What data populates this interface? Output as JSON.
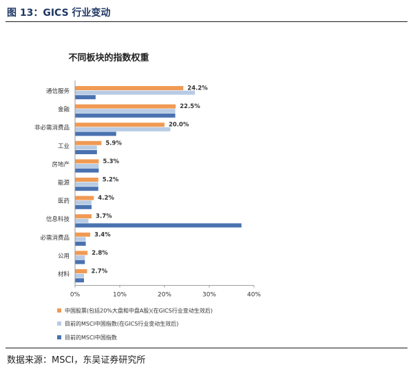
{
  "figure_title": "图 13：GICS 行业变动",
  "source": "数据来源：MSCI，东吴证券研究所",
  "colors": {
    "series1": "#f09a54",
    "series2": "#b8cbe4",
    "series3": "#4a72b0",
    "label": "#333333",
    "axis": "#999999",
    "title_color": "#1f3864"
  },
  "chart_data": {
    "type": "bar",
    "orientation": "horizontal",
    "title": "不同板块的指数权重",
    "categories": [
      "通信服务",
      "金融",
      "非必需消费品",
      "工业",
      "房地产",
      "能源",
      "医药",
      "信息科技",
      "必需消费品",
      "公用",
      "材料"
    ],
    "series": [
      {
        "name": "中国股票(包括20%大盘和中盘A股)(在GICS行业变动生效后)",
        "values": [
          24.2,
          22.5,
          20.0,
          5.9,
          5.3,
          5.2,
          4.2,
          3.7,
          3.4,
          2.8,
          2.7
        ]
      },
      {
        "name": "目前的MSCI中国指数(在GICS行业变动生效后)",
        "values": [
          26.8,
          22.4,
          21.3,
          4.9,
          5.3,
          5.2,
          3.7,
          3.0,
          2.4,
          2.2,
          2.0
        ]
      },
      {
        "name": "目前的MSCI中国指数",
        "values": [
          4.6,
          22.4,
          9.2,
          4.9,
          5.3,
          5.2,
          3.7,
          37.2,
          2.4,
          2.2,
          2.0
        ]
      }
    ],
    "data_labels": [
      "24.2%",
      "22.5%",
      "20.0%",
      "5.9%",
      "5.3%",
      "5.2%",
      "4.2%",
      "3.7%",
      "3.4%",
      "2.8%",
      "2.7%"
    ],
    "xlim": [
      0,
      40
    ],
    "xticks": [
      0,
      10,
      20,
      30,
      40
    ],
    "xtick_labels": [
      "0%",
      "10%",
      "20%",
      "30%",
      "40%"
    ],
    "grid": false,
    "legend": "bottom"
  }
}
